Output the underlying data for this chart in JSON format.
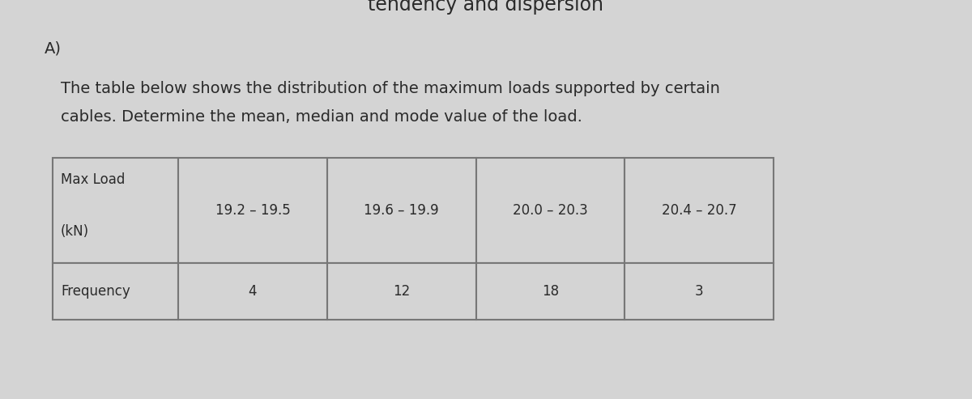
{
  "title_top": "tendency and dispersion",
  "label_A": "A)",
  "description_line1": "The table below shows the distribution of the maximum loads supported by certain",
  "description_line2": "cables. Determine the mean, median and mode value of the load.",
  "row1_col0_line1": "Max Load",
  "row1_col0_line2": "(kN)",
  "row1_col1": "19.2 – 19.5",
  "row1_col2": "19.6 – 19.9",
  "row1_col3": "20.0 – 20.3",
  "row1_col4": "20.4 – 20.7",
  "row2_col0": "Frequency",
  "row2_col1": "4",
  "row2_col2": "12",
  "row2_col3": "18",
  "row2_col4": "3",
  "bg_color": "#d4d4d4",
  "table_bg": "#d4d4d4",
  "text_color": "#2a2a2a",
  "border_color": "#777777",
  "fig_width": 12.0,
  "fig_height": 4.93,
  "font_size_title": 17,
  "font_size_text": 14,
  "font_size_table": 12
}
